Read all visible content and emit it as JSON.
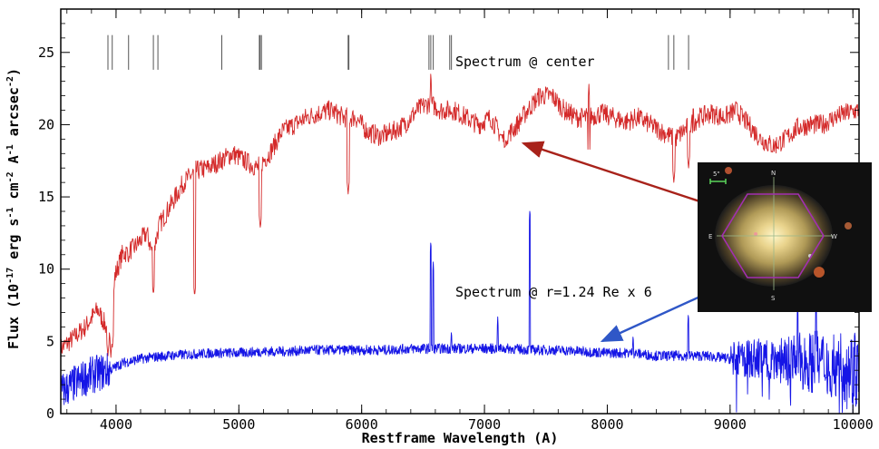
{
  "chart_data": {
    "type": "line",
    "xlabel": "Restframe Wavelength (A)",
    "ylabel": "Flux (10^-17 erg s^-1 cm^-2 A^-1 arcsec^-2)",
    "xlim": [
      3550,
      10050
    ],
    "ylim": [
      0,
      28
    ],
    "x_ticks": [
      4000,
      5000,
      6000,
      7000,
      8000,
      9000,
      10000
    ],
    "y_ticks": [
      0,
      5,
      10,
      15,
      20,
      25
    ],
    "grid": false,
    "annotations": [
      "Spectrum @ center",
      "Spectrum @ r=1.24 Re x 6"
    ],
    "line_markers": [
      3934,
      3969,
      4102,
      4304,
      4341,
      4861,
      5167,
      5173,
      5184,
      5890,
      5896,
      6548,
      6563,
      6583,
      6717,
      6731,
      8498,
      8542,
      8662
    ],
    "series": [
      {
        "label": "Spectrum @ center",
        "color": "#d42a2a",
        "x": [
          3550,
          3650,
          3750,
          3850,
          3920,
          3960,
          3990,
          4050,
          4150,
          4250,
          4300,
          4350,
          4450,
          4550,
          4650,
          4750,
          4850,
          4950,
          5050,
          5150,
          5250,
          5350,
          5450,
          5550,
          5650,
          5750,
          5850,
          5950,
          6050,
          6150,
          6250,
          6350,
          6450,
          6550,
          6650,
          6750,
          6850,
          6950,
          7050,
          7150,
          7250,
          7350,
          7450,
          7550,
          7650,
          7750,
          7850,
          7950,
          8050,
          8150,
          8250,
          8350,
          8450,
          8550,
          8650,
          8750,
          8850,
          8950,
          9050,
          9150,
          9250,
          9350,
          9450,
          9550,
          9650,
          9750,
          9850,
          9950,
          10050
        ],
        "y": [
          4.5,
          5.2,
          6.0,
          7.2,
          6.0,
          4.5,
          9.5,
          11.0,
          11.5,
          12.5,
          11.0,
          13.0,
          14.5,
          16.0,
          16.8,
          17.0,
          17.5,
          18.0,
          17.5,
          17.0,
          18.0,
          19.5,
          20.0,
          20.5,
          20.8,
          21.0,
          20.5,
          20.5,
          19.5,
          19.2,
          19.5,
          20.0,
          21.0,
          21.5,
          21.0,
          21.0,
          20.5,
          20.0,
          20.5,
          19.0,
          19.8,
          21.0,
          22.0,
          22.0,
          21.0,
          20.5,
          20.5,
          20.8,
          20.5,
          20.2,
          20.5,
          20.0,
          19.5,
          19.0,
          19.8,
          20.5,
          20.8,
          20.5,
          21.0,
          20.0,
          19.0,
          18.5,
          19.0,
          19.8,
          20.0,
          20.0,
          20.5,
          20.8,
          21.0
        ],
        "dips": [
          [
            3934,
            4.0
          ],
          [
            3969,
            4.5
          ],
          [
            4102,
            10.5
          ],
          [
            4304,
            8.2
          ],
          [
            4640,
            8.1
          ],
          [
            5175,
            12.8
          ],
          [
            5890,
            15.2
          ],
          [
            7170,
            18.5
          ],
          [
            7850,
            17.5
          ],
          [
            8542,
            16.0
          ],
          [
            8662,
            17.0
          ]
        ],
        "peaks": [
          [
            6563,
            23.7
          ],
          [
            7850,
            22.8
          ],
          [
            8700,
            21.5
          ]
        ]
      },
      {
        "label": "Spectrum @ r=1.24 Re x 6",
        "color": "#1515e6",
        "x": [
          3550,
          3650,
          3750,
          3850,
          3950,
          4050,
          4200,
          4400,
          4600,
          4800,
          5000,
          5200,
          5400,
          5600,
          5800,
          6000,
          6200,
          6400,
          6600,
          6800,
          7000,
          7200,
          7400,
          7600,
          7800,
          8000,
          8200,
          8400,
          8600,
          8800,
          9000,
          9200,
          9400,
          9600,
          9800,
          10000,
          10050
        ],
        "y": [
          1.5,
          2.0,
          2.5,
          2.8,
          3.0,
          3.5,
          3.8,
          4.0,
          4.1,
          4.2,
          4.2,
          4.3,
          4.3,
          4.4,
          4.4,
          4.4,
          4.4,
          4.5,
          4.5,
          4.5,
          4.5,
          4.5,
          4.4,
          4.4,
          4.3,
          4.2,
          4.2,
          4.0,
          4.0,
          4.0,
          3.8,
          3.8,
          3.8,
          3.6,
          3.5,
          3.2,
          3.0
        ],
        "peaks": [
          [
            6563,
            12.0
          ],
          [
            6583,
            10.5
          ],
          [
            6731,
            5.8
          ],
          [
            7108,
            6.7
          ],
          [
            7370,
            14.2
          ],
          [
            8210,
            5.5
          ],
          [
            8660,
            7.0
          ],
          [
            9550,
            7.5
          ],
          [
            9700,
            7.9
          ]
        ]
      }
    ]
  }
}
